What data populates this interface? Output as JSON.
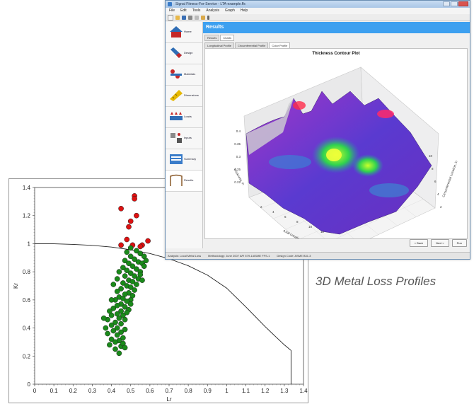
{
  "window": {
    "title": "Signal Fitness-For-Service - LTA-example.ffs",
    "menu": [
      "File",
      "Edit",
      "Tools",
      "Analysis",
      "Graph",
      "Help"
    ]
  },
  "nav": [
    {
      "label": "Home",
      "icon": "house-icon"
    },
    {
      "label": "Design",
      "icon": "vessel-icon"
    },
    {
      "label": "Materials",
      "icon": "materials-icon"
    },
    {
      "label": "Dimensions",
      "icon": "ruler-icon"
    },
    {
      "label": "Loads",
      "icon": "loads-icon"
    },
    {
      "label": "Inputs",
      "icon": "inputs-icon"
    },
    {
      "label": "Summary",
      "icon": "summary-icon"
    },
    {
      "label": "Results",
      "icon": "results-icon"
    }
  ],
  "content": {
    "header": "Results",
    "tabs": [
      "Results",
      "Charts"
    ],
    "subtabs": [
      "Longitudinal Profile",
      "Circumferential Profile",
      "Color Profile"
    ],
    "active_subtab": 2,
    "plot_title": "Thickness Contour Plot",
    "axis_x": "Axial Location, in",
    "axis_y": "Circumferential Location, in",
    "axis_z": "Thickness, in",
    "z_ticks": [
      "0.4",
      "0.35",
      "0.3",
      "0.25",
      "0.22"
    ],
    "axial_ticks": [
      "2",
      "4",
      "6",
      "8",
      "10",
      "12"
    ],
    "circ_ticks": [
      "2",
      "4",
      "6",
      "8",
      "10"
    ],
    "buttons": {
      "back": "< Back",
      "next": "Next >",
      "run": "Run"
    }
  },
  "status": [
    "Analysis: Local Metal Loss",
    "Methodology: June 2007 API 579-1/ASME FFS-1",
    "Design Code: ASME B31.3"
  ],
  "caption": "3D Metal Loss Profiles",
  "colors": {
    "accent": "#3da0f0",
    "accept": "#1a8a1a",
    "reject": "#dd1111"
  },
  "chart_data": {
    "type": "scatter",
    "xlabel": "Lr",
    "ylabel": "Kr",
    "xlim": [
      0,
      1.4
    ],
    "ylim": [
      0,
      1.4
    ],
    "x_ticks": [
      "0",
      "0.1",
      "0.2",
      "0.3",
      "0.4",
      "0.5",
      "0.6",
      "0.7",
      "0.8",
      "0.9",
      "1",
      "1.1",
      "1.2",
      "1.3",
      "1.4"
    ],
    "y_ticks": [
      "0",
      "0.2",
      "0.4",
      "0.6",
      "0.8",
      "1",
      "1.2",
      "1.4"
    ],
    "curve": [
      [
        0,
        1.0
      ],
      [
        0.1,
        0.999
      ],
      [
        0.2,
        0.995
      ],
      [
        0.3,
        0.988
      ],
      [
        0.4,
        0.976
      ],
      [
        0.5,
        0.957
      ],
      [
        0.6,
        0.93
      ],
      [
        0.7,
        0.893
      ],
      [
        0.8,
        0.843
      ],
      [
        0.9,
        0.776
      ],
      [
        1.0,
        0.684
      ],
      [
        1.1,
        0.55
      ],
      [
        1.2,
        0.41
      ],
      [
        1.3,
        0.28
      ],
      [
        1.335,
        0.24
      ],
      [
        1.335,
        0.0
      ]
    ],
    "series": [
      {
        "color": "#dd1111",
        "points": [
          [
            0.52,
            1.34
          ],
          [
            0.52,
            1.32
          ],
          [
            0.45,
            1.25
          ],
          [
            0.53,
            1.2
          ],
          [
            0.5,
            1.16
          ],
          [
            0.49,
            1.12
          ],
          [
            0.59,
            1.02
          ],
          [
            0.48,
            1.03
          ],
          [
            0.56,
            0.99
          ],
          [
            0.55,
            0.98
          ],
          [
            0.45,
            0.99
          ],
          [
            0.51,
            0.99
          ]
        ]
      },
      {
        "color": "#1a8a1a",
        "points": [
          [
            0.5,
            0.97
          ],
          [
            0.53,
            0.95
          ],
          [
            0.48,
            0.94
          ],
          [
            0.55,
            0.93
          ],
          [
            0.5,
            0.91
          ],
          [
            0.57,
            0.91
          ],
          [
            0.52,
            0.89
          ],
          [
            0.47,
            0.88
          ],
          [
            0.54,
            0.87
          ],
          [
            0.49,
            0.86
          ],
          [
            0.56,
            0.86
          ],
          [
            0.51,
            0.84
          ],
          [
            0.46,
            0.83
          ],
          [
            0.53,
            0.82
          ],
          [
            0.48,
            0.81
          ],
          [
            0.55,
            0.8
          ],
          [
            0.44,
            0.8
          ],
          [
            0.5,
            0.79
          ],
          [
            0.52,
            0.77
          ],
          [
            0.47,
            0.77
          ],
          [
            0.54,
            0.75
          ],
          [
            0.43,
            0.75
          ],
          [
            0.49,
            0.74
          ],
          [
            0.51,
            0.73
          ],
          [
            0.46,
            0.72
          ],
          [
            0.53,
            0.71
          ],
          [
            0.41,
            0.71
          ],
          [
            0.48,
            0.7
          ],
          [
            0.5,
            0.69
          ],
          [
            0.45,
            0.68
          ],
          [
            0.52,
            0.67
          ],
          [
            0.43,
            0.66
          ],
          [
            0.49,
            0.65
          ],
          [
            0.47,
            0.64
          ],
          [
            0.51,
            0.63
          ],
          [
            0.44,
            0.62
          ],
          [
            0.46,
            0.61
          ],
          [
            0.5,
            0.6
          ],
          [
            0.42,
            0.6
          ],
          [
            0.48,
            0.59
          ],
          [
            0.45,
            0.57
          ],
          [
            0.5,
            0.57
          ],
          [
            0.43,
            0.56
          ],
          [
            0.47,
            0.55
          ],
          [
            0.41,
            0.54
          ],
          [
            0.49,
            0.53
          ],
          [
            0.45,
            0.52
          ],
          [
            0.48,
            0.51
          ],
          [
            0.43,
            0.5
          ],
          [
            0.46,
            0.49
          ],
          [
            0.4,
            0.49
          ],
          [
            0.44,
            0.47
          ],
          [
            0.38,
            0.46
          ],
          [
            0.47,
            0.46
          ],
          [
            0.42,
            0.44
          ],
          [
            0.45,
            0.43
          ],
          [
            0.4,
            0.42
          ],
          [
            0.43,
            0.4
          ],
          [
            0.47,
            0.39
          ],
          [
            0.41,
            0.38
          ],
          [
            0.45,
            0.37
          ],
          [
            0.38,
            0.36
          ],
          [
            0.43,
            0.35
          ],
          [
            0.46,
            0.33
          ],
          [
            0.4,
            0.32
          ],
          [
            0.44,
            0.31
          ],
          [
            0.42,
            0.3
          ],
          [
            0.39,
            0.28
          ],
          [
            0.45,
            0.27
          ],
          [
            0.42,
            0.25
          ],
          [
            0.44,
            0.22
          ],
          [
            0.46,
            0.29
          ],
          [
            0.47,
            0.26
          ],
          [
            0.36,
            0.47
          ],
          [
            0.37,
            0.4
          ],
          [
            0.39,
            0.52
          ],
          [
            0.4,
            0.6
          ],
          [
            0.55,
            0.78
          ],
          [
            0.56,
            0.74
          ],
          [
            0.57,
            0.84
          ],
          [
            0.58,
            0.88
          ]
        ]
      }
    ]
  }
}
